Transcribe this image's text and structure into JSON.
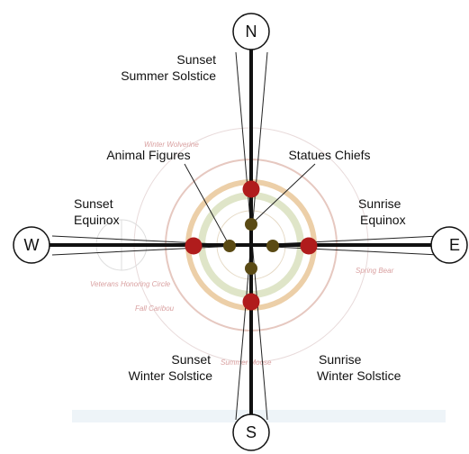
{
  "compass": {
    "north": "N",
    "south": "S",
    "west": "W",
    "east": "E"
  },
  "labels": {
    "sunset_summer_solstice": [
      "Sunset",
      "Summer Solstice"
    ],
    "animal_figures": "Animal Figures",
    "statues_chiefs": "Statues Chiefs",
    "sunset_equinox": [
      "Sunset",
      "Equinox"
    ],
    "sunrise_equinox": [
      "Sunrise",
      "Equinox"
    ],
    "sunset_winter_solstice": [
      "Sunset",
      "Winter Solstice"
    ],
    "sunrise_winter_solstice": [
      "Sunrise",
      "Winter Solstice"
    ]
  },
  "plan_labels": [
    "Winter Wolverine",
    "Spring Bear",
    "Fall Caribou",
    "Summer Moose",
    "Veterans Honoring Circle"
  ]
}
